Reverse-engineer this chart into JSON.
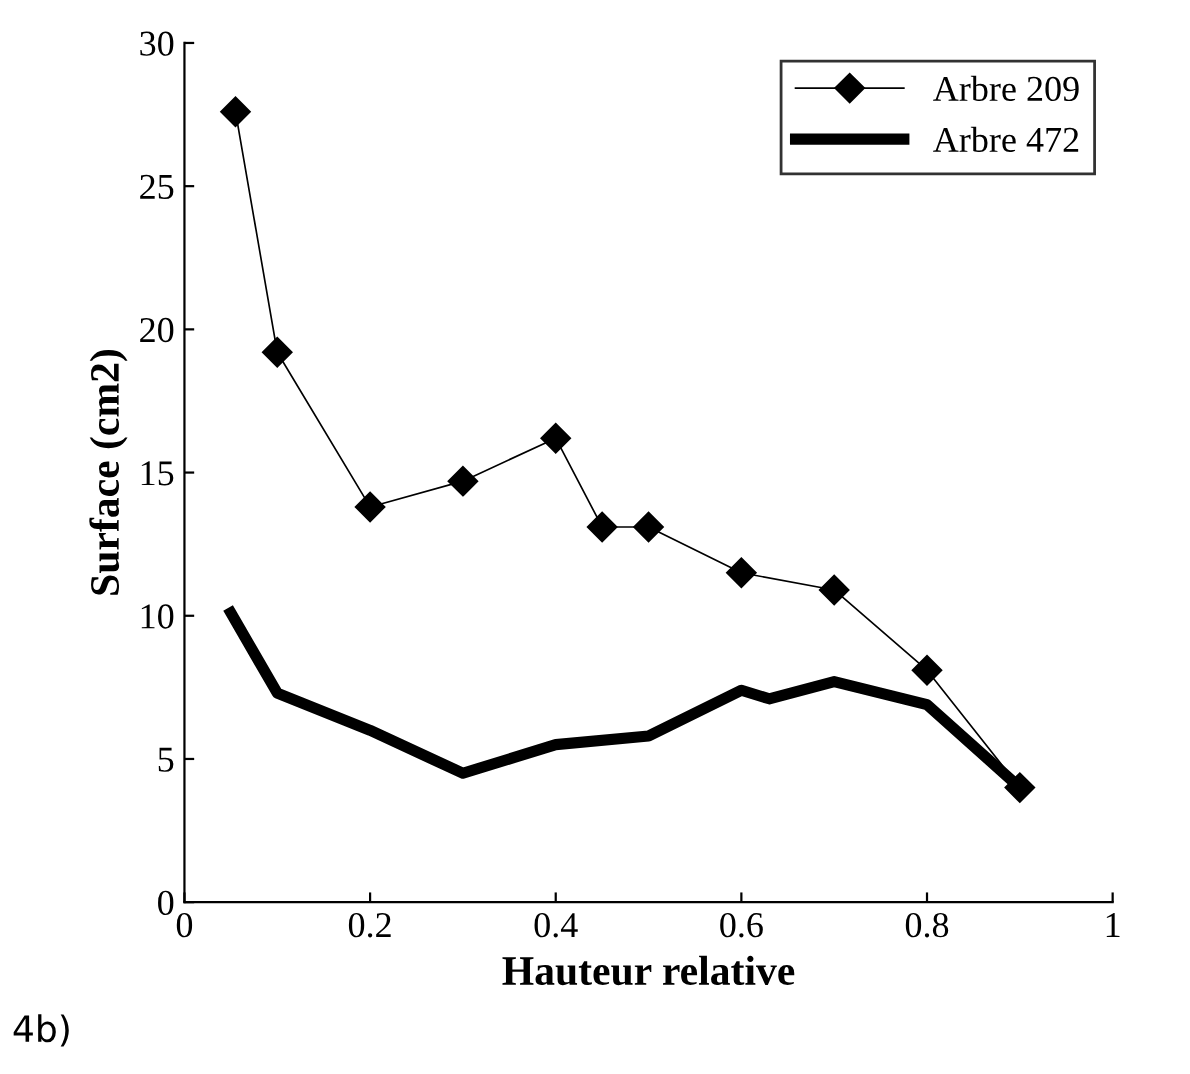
{
  "chart_data": {
    "type": "line",
    "xlabel": "Hauteur relative",
    "ylabel": "Surface (cm2)",
    "xlim": [
      0,
      1
    ],
    "ylim": [
      0,
      30
    ],
    "xticks": [
      0,
      0.2,
      0.4,
      0.6,
      0.8,
      1
    ],
    "yticks": [
      0,
      5,
      10,
      15,
      20,
      25,
      30
    ],
    "grid": false,
    "legend": "top right",
    "annotations": [
      "4b)"
    ],
    "series": [
      {
        "name": "Arbre 209",
        "color": "#000000",
        "marker": "diamond",
        "x": [
          0.055,
          0.1,
          0.2,
          0.3,
          0.4,
          0.45,
          0.5,
          0.6,
          0.7,
          0.8,
          0.9
        ],
        "values": [
          27.6,
          19.2,
          13.8,
          14.7,
          16.2,
          13.1,
          13.1,
          11.5,
          10.9,
          8.1,
          4.0
        ]
      },
      {
        "name": "Arbre 472",
        "color": "#000000",
        "marker": "none",
        "x": [
          0.05,
          0.1,
          0.2,
          0.3,
          0.4,
          0.5,
          0.6,
          0.63,
          0.7,
          0.8,
          0.9
        ],
        "values": [
          10.1,
          7.3,
          6.0,
          4.5,
          5.5,
          5.8,
          7.4,
          7.1,
          7.7,
          6.9,
          4.0
        ]
      }
    ]
  }
}
